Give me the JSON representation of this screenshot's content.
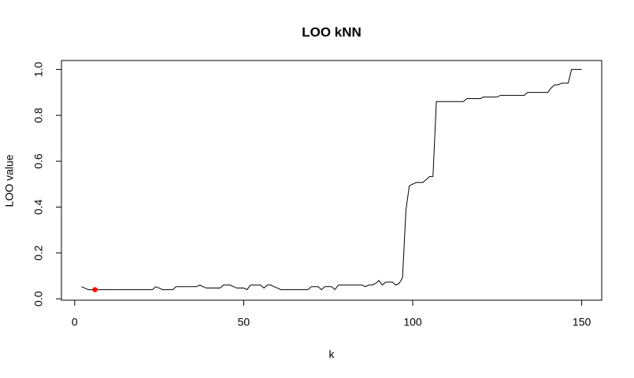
{
  "chart_data": {
    "type": "line",
    "title": "LOO kNN",
    "x_label": "k",
    "y_label": "LOO value",
    "x": [
      2,
      3,
      4,
      5,
      6,
      7,
      8,
      9,
      10,
      11,
      12,
      13,
      14,
      15,
      16,
      17,
      18,
      19,
      20,
      21,
      22,
      23,
      24,
      25,
      26,
      27,
      28,
      29,
      30,
      31,
      32,
      33,
      34,
      35,
      36,
      37,
      38,
      39,
      40,
      41,
      42,
      43,
      44,
      45,
      46,
      47,
      48,
      49,
      50,
      51,
      52,
      53,
      54,
      55,
      56,
      57,
      58,
      59,
      60,
      61,
      62,
      63,
      64,
      65,
      66,
      67,
      68,
      69,
      70,
      71,
      72,
      73,
      74,
      75,
      76,
      77,
      78,
      79,
      80,
      81,
      82,
      83,
      84,
      85,
      86,
      87,
      88,
      89,
      90,
      91,
      92,
      93,
      94,
      95,
      96,
      97,
      98,
      99,
      100,
      101,
      102,
      103,
      104,
      105,
      106,
      107,
      108,
      109,
      110,
      111,
      112,
      113,
      114,
      115,
      116,
      117,
      118,
      119,
      120,
      121,
      122,
      123,
      124,
      125,
      126,
      127,
      128,
      129,
      130,
      131,
      132,
      133,
      134,
      135,
      136,
      137,
      138,
      139,
      140,
      141,
      142,
      143,
      144,
      145,
      146,
      147,
      148,
      149,
      150
    ],
    "values": [
      0.053,
      0.047,
      0.04,
      0.04,
      0.04,
      0.04,
      0.04,
      0.04,
      0.04,
      0.04,
      0.04,
      0.04,
      0.04,
      0.04,
      0.04,
      0.04,
      0.04,
      0.04,
      0.04,
      0.04,
      0.04,
      0.04,
      0.053,
      0.047,
      0.04,
      0.04,
      0.04,
      0.04,
      0.053,
      0.053,
      0.053,
      0.053,
      0.053,
      0.053,
      0.053,
      0.06,
      0.053,
      0.047,
      0.047,
      0.047,
      0.047,
      0.047,
      0.06,
      0.06,
      0.06,
      0.053,
      0.047,
      0.047,
      0.047,
      0.04,
      0.06,
      0.06,
      0.06,
      0.06,
      0.047,
      0.06,
      0.06,
      0.053,
      0.047,
      0.04,
      0.04,
      0.04,
      0.04,
      0.04,
      0.04,
      0.04,
      0.04,
      0.04,
      0.053,
      0.053,
      0.053,
      0.04,
      0.053,
      0.053,
      0.053,
      0.04,
      0.06,
      0.06,
      0.06,
      0.06,
      0.06,
      0.06,
      0.06,
      0.06,
      0.053,
      0.06,
      0.06,
      0.067,
      0.08,
      0.06,
      0.073,
      0.073,
      0.073,
      0.06,
      0.067,
      0.093,
      0.387,
      0.493,
      0.5,
      0.507,
      0.507,
      0.507,
      0.52,
      0.533,
      0.533,
      0.86,
      0.86,
      0.86,
      0.86,
      0.86,
      0.86,
      0.86,
      0.86,
      0.86,
      0.873,
      0.873,
      0.873,
      0.873,
      0.873,
      0.88,
      0.88,
      0.88,
      0.88,
      0.88,
      0.887,
      0.887,
      0.887,
      0.887,
      0.887,
      0.887,
      0.887,
      0.887,
      0.9,
      0.9,
      0.9,
      0.9,
      0.9,
      0.9,
      0.9,
      0.92,
      0.933,
      0.933,
      0.94,
      0.94,
      0.94,
      1.0,
      1.0,
      1.0,
      1.0
    ],
    "color": "#000000",
    "highlight": {
      "x": 6,
      "y": 0.04,
      "color": "#ff0000"
    },
    "xlim": [
      -3.92,
      155.92
    ],
    "ylim": [
      -0.006,
      1.039
    ],
    "xticks": [
      0,
      50,
      100,
      150
    ],
    "yticks": [
      {
        "value": 0,
        "label": "0.0"
      },
      {
        "value": 0.2,
        "label": "0.2"
      },
      {
        "value": 0.4,
        "label": "0.4"
      },
      {
        "value": 0.6,
        "label": "0.6"
      },
      {
        "value": 0.8,
        "label": "0.8"
      },
      {
        "value": 1,
        "label": "1.0"
      }
    ]
  }
}
